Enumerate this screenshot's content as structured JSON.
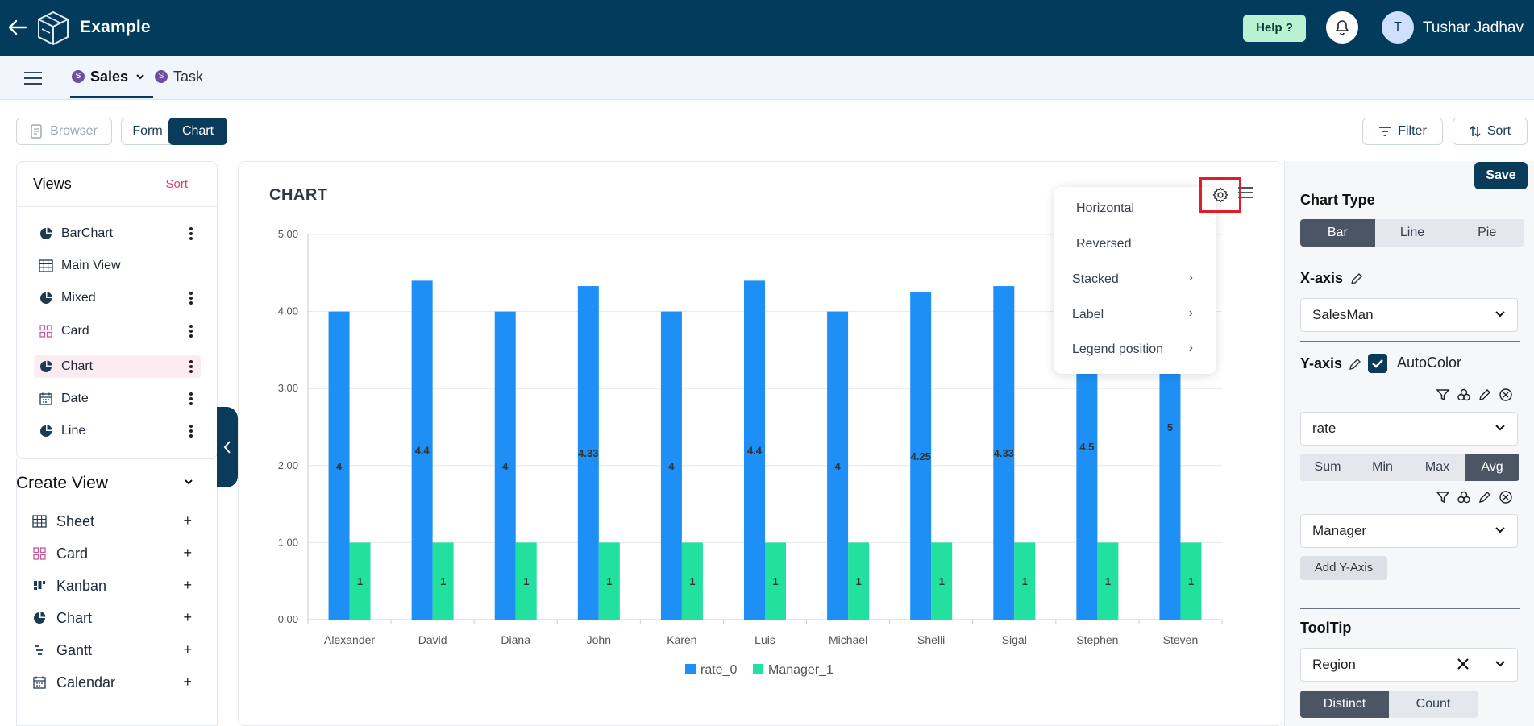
{
  "header": {
    "title": "Example",
    "help": "Help ?",
    "avatar_initial": "T",
    "user_name": "Tushar Jadhav"
  },
  "tabs": [
    {
      "badge": "S",
      "label": "Sales"
    },
    {
      "badge": "S",
      "label": "Task"
    }
  ],
  "toolbar": {
    "browser": "Browser",
    "form": "Form",
    "chart": "Chart",
    "filter": "Filter",
    "sort": "Sort"
  },
  "views": {
    "title": "Views",
    "sort": "Sort",
    "items": [
      {
        "label": "BarChart",
        "icon": "pie-icon"
      },
      {
        "label": "Main View",
        "icon": "grid-icon"
      },
      {
        "label": "Mixed",
        "icon": "pie-icon"
      },
      {
        "label": "Card",
        "icon": "card-icon"
      },
      {
        "label": "Chart",
        "icon": "pie-icon"
      },
      {
        "label": "Date",
        "icon": "calendar-icon"
      },
      {
        "label": "Line",
        "icon": "pie-icon"
      }
    ]
  },
  "create_view": {
    "title": "Create View",
    "items": [
      {
        "label": "Sheet",
        "icon": "grid-icon"
      },
      {
        "label": "Card",
        "icon": "card-icon"
      },
      {
        "label": "Kanban",
        "icon": "kanban-icon"
      },
      {
        "label": "Chart",
        "icon": "pie-icon"
      },
      {
        "label": "Gantt",
        "icon": "gantt-icon"
      },
      {
        "label": "Calendar",
        "icon": "calendar-icon"
      }
    ]
  },
  "chart_panel": {
    "heading": "CHART",
    "menu": [
      {
        "label": "Horizontal",
        "submenu": false
      },
      {
        "label": "Reversed",
        "submenu": false
      },
      {
        "label": "Stacked",
        "submenu": true
      },
      {
        "label": "Label",
        "submenu": true
      },
      {
        "label": "Legend position",
        "submenu": true
      }
    ]
  },
  "chart_data": {
    "type": "bar",
    "categories": [
      "Alexander",
      "David",
      "Diana",
      "John",
      "Karen",
      "Luis",
      "Michael",
      "Shelli",
      "Sigal",
      "Stephen",
      "Steven"
    ],
    "series": [
      {
        "name": "rate_0",
        "color": "#1e90f5",
        "values": [
          4,
          4.4,
          4,
          4.33,
          4,
          4.4,
          4,
          4.25,
          4.33,
          4.5,
          5
        ],
        "labels": [
          "4",
          "4.4",
          "4",
          "4.33",
          "4",
          "4.4",
          "4",
          "4.25",
          "4.33",
          "4.5",
          "5"
        ]
      },
      {
        "name": "Manager_1",
        "color": "#22e09d",
        "values": [
          1,
          1,
          1,
          1,
          1,
          1,
          1,
          1,
          1,
          1,
          1
        ],
        "labels": [
          "1",
          "1",
          "1",
          "1",
          "1",
          "1",
          "1",
          "1",
          "1",
          "1",
          "1"
        ]
      }
    ],
    "yticks": [
      "0.00",
      "1.00",
      "2.00",
      "3.00",
      "4.00",
      "5.00"
    ],
    "ylim": [
      0,
      5
    ],
    "grid": true,
    "legend": "bottom"
  },
  "right_panel": {
    "save": "Save",
    "chart_type": {
      "label": "Chart Type",
      "options": [
        "Bar",
        "Line",
        "Pie"
      ],
      "selected": "Bar"
    },
    "x_axis": {
      "label": "X-axis",
      "value": "SalesMan"
    },
    "y_axis": {
      "label": "Y-axis",
      "autocolor": "AutoColor",
      "field1": "rate",
      "agg": [
        "Sum",
        "Min",
        "Max",
        "Avg"
      ],
      "agg_selected": "Avg",
      "field2": "Manager",
      "add": "Add Y-Axis"
    },
    "tooltip": {
      "label": "ToolTip",
      "value": "Region",
      "modes": [
        "Distinct",
        "Count"
      ],
      "mode_selected": "Distinct"
    }
  }
}
